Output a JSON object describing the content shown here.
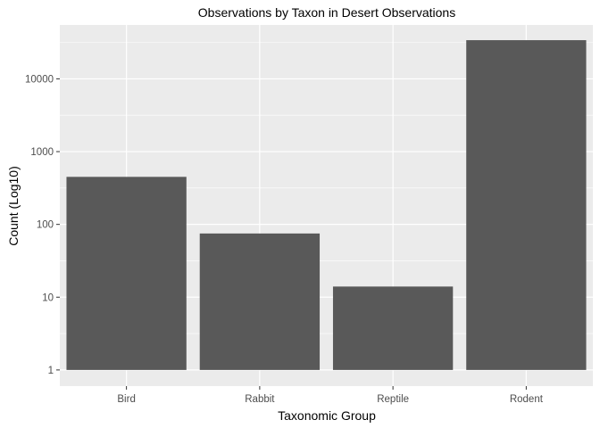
{
  "chart_data": {
    "type": "bar",
    "title": "Observations by Taxon in Desert Observations",
    "xlabel": "Taxonomic Group",
    "ylabel": "Count (Log10)",
    "y_scale": "log10",
    "categories": [
      "Bird",
      "Rabbit",
      "Reptile",
      "Rodent"
    ],
    "values": [
      450,
      75,
      14,
      34000
    ],
    "y_ticks": [
      1,
      10,
      100,
      1000,
      10000
    ],
    "y_tick_labels": [
      "1",
      "10",
      "100",
      "1000",
      "10000"
    ],
    "ylim": [
      0.6,
      55000
    ],
    "grid": true,
    "colors": {
      "bar": "#595959",
      "panel": "#ebebeb",
      "grid": "#ffffff"
    }
  }
}
